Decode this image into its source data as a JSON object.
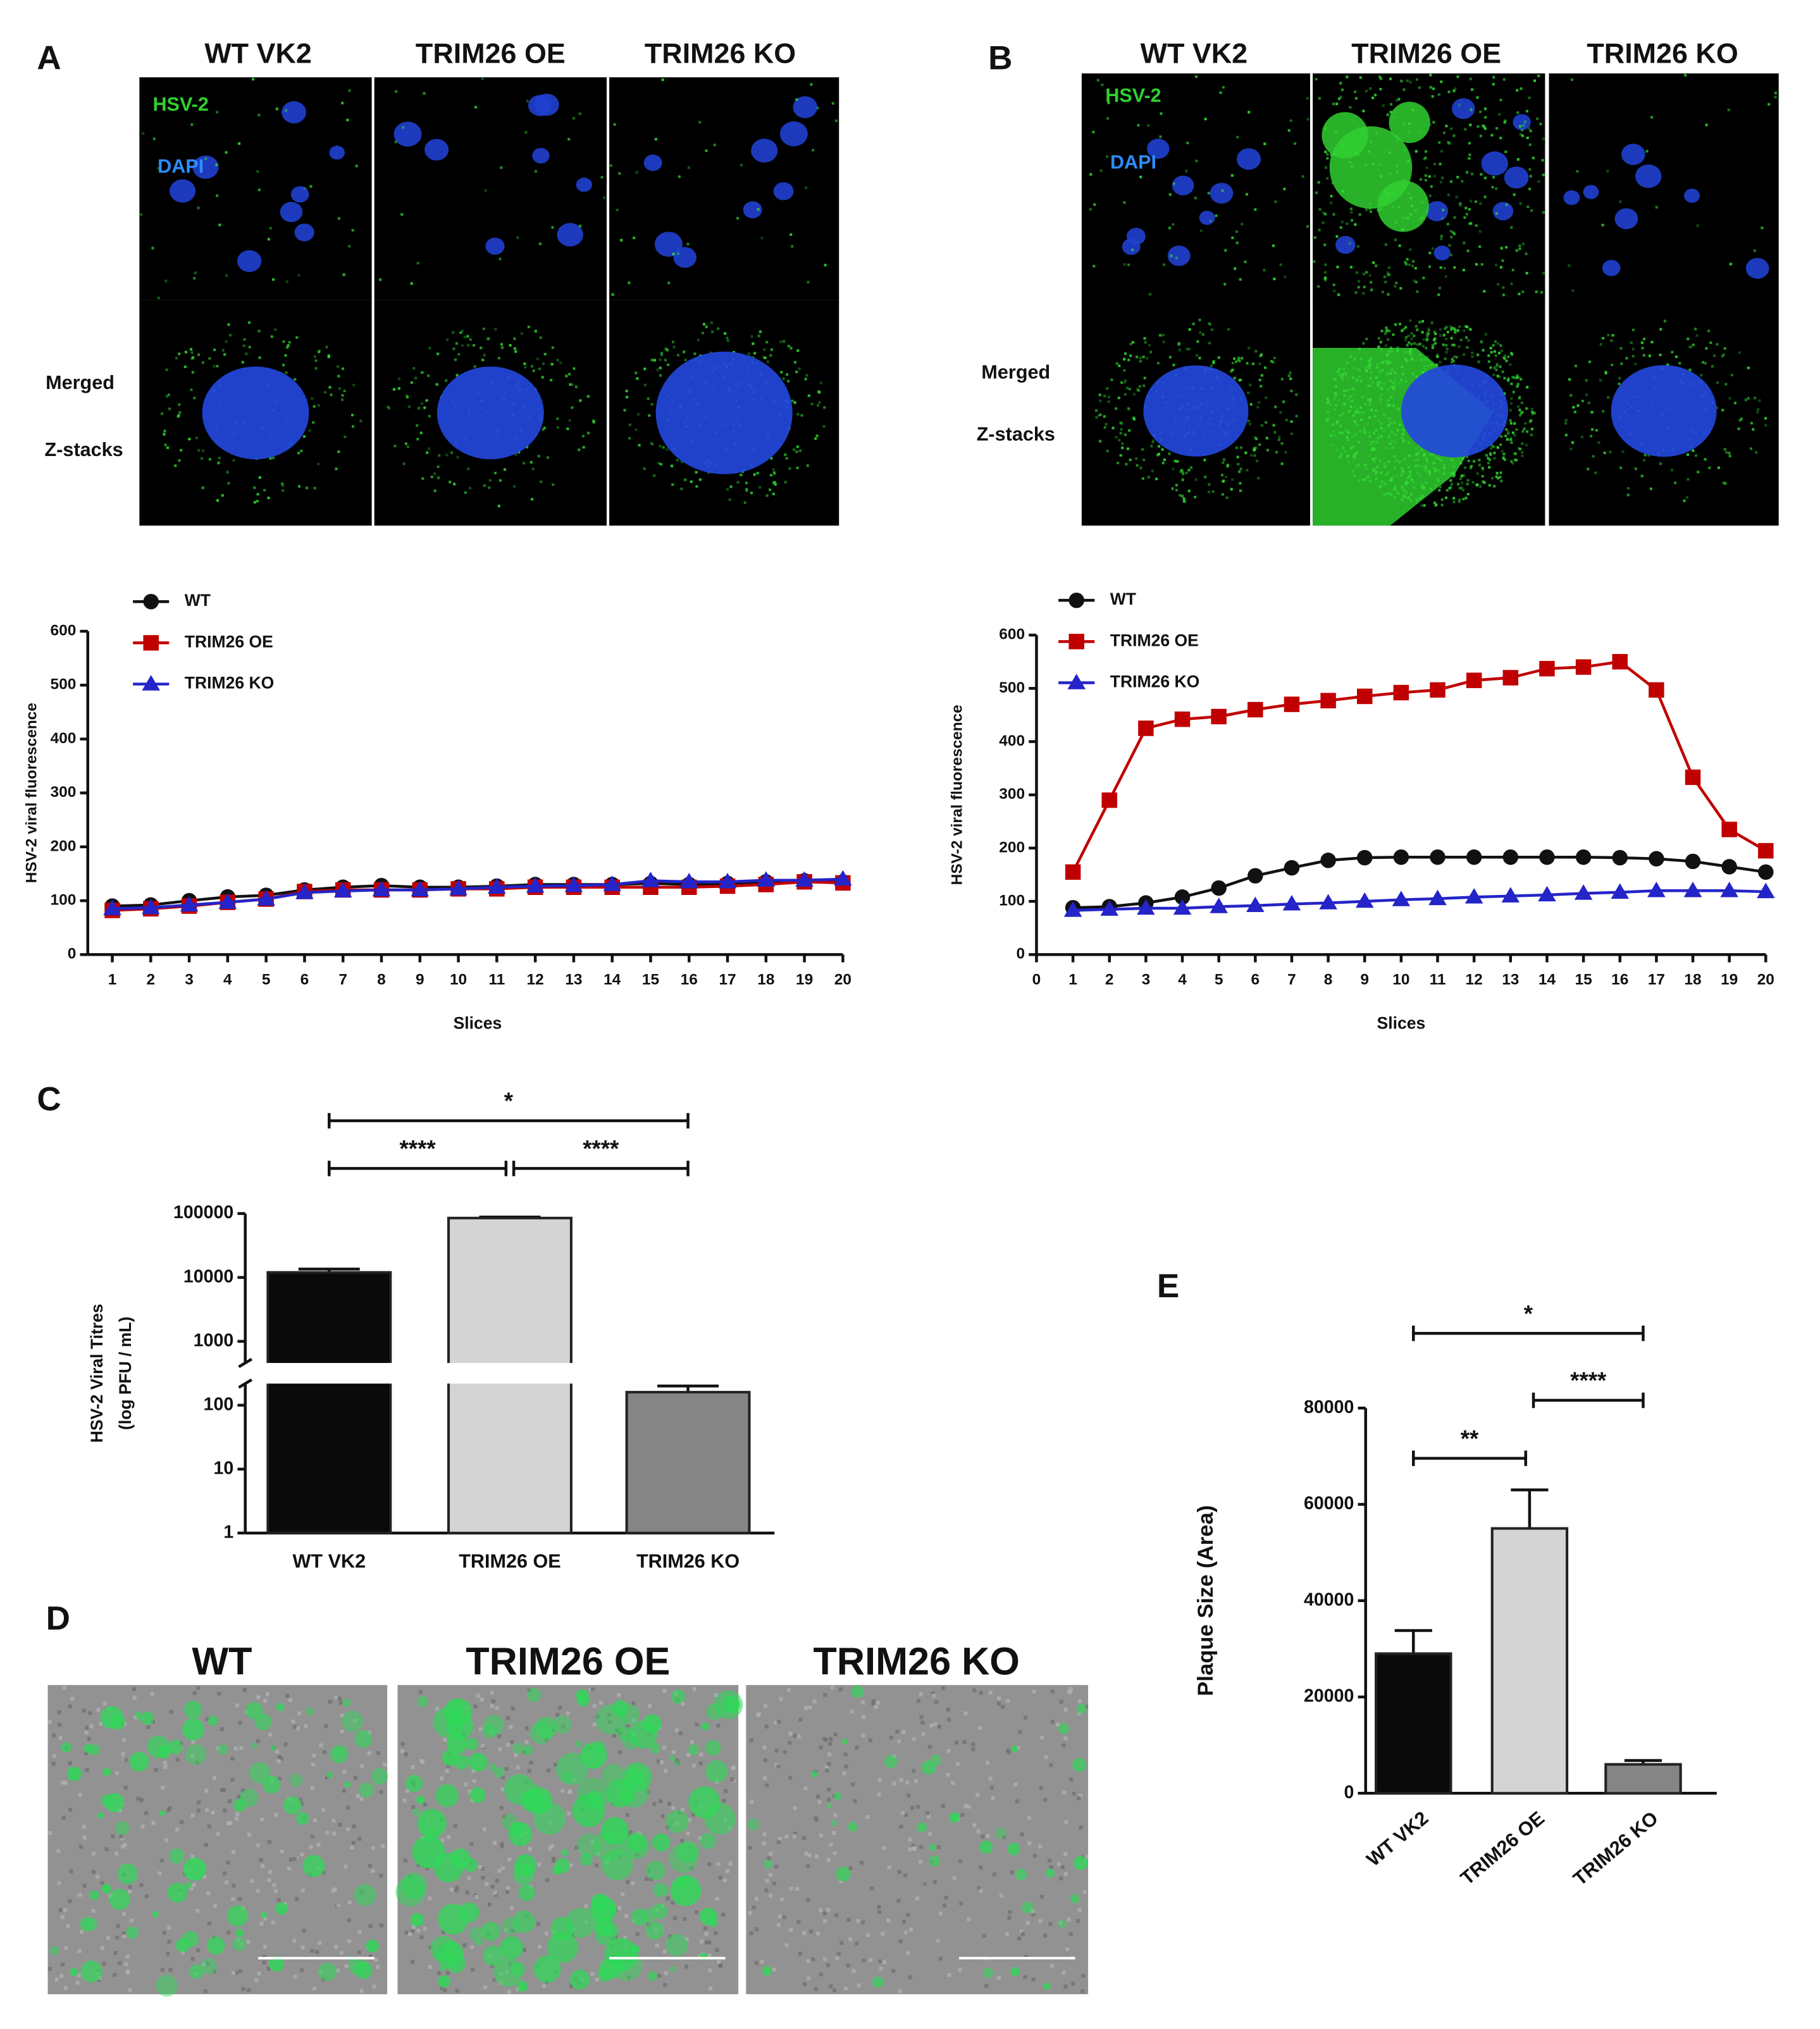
{
  "figure": {
    "panel_labels": [
      "A",
      "B",
      "C",
      "D",
      "E"
    ],
    "microscopy": [
      {
        "columns": [
          "WT VK2",
          "TRIM26 OE",
          "TRIM26 KO"
        ],
        "channel_labels": [
          "HSV-2",
          "DAPI"
        ],
        "row_labels": [
          "Merged",
          "Z-stacks"
        ]
      },
      {
        "columns": [
          "WT VK2",
          "TRIM26 OE",
          "TRIM26 KO"
        ],
        "channel_labels": [
          "HSV-2",
          "DAPI"
        ],
        "row_labels": [
          "Merged",
          "Z-stacks"
        ]
      }
    ],
    "plaque_images": {
      "columns": [
        "WT",
        "TRIM26 OE",
        "TRIM26 KO"
      ]
    }
  },
  "chart_data": [
    {
      "type": "line",
      "xlabel": "Slices",
      "ylabel": "HSV-2 viral fluorescence",
      "x": [
        1,
        2,
        3,
        4,
        5,
        6,
        7,
        8,
        9,
        10,
        11,
        12,
        13,
        14,
        15,
        16,
        17,
        18,
        19,
        20
      ],
      "xlim": [
        1,
        20
      ],
      "xticks": [
        1,
        2,
        3,
        4,
        5,
        6,
        7,
        8,
        9,
        10,
        11,
        12,
        13,
        14,
        15,
        16,
        17,
        18,
        19,
        20
      ],
      "ylim": [
        0,
        600
      ],
      "yticks": [
        0,
        100,
        200,
        300,
        400,
        500,
        600
      ],
      "series": [
        {
          "name": "WT",
          "color": "#111111",
          "marker": "circle",
          "values": [
            90,
            92,
            100,
            107,
            110,
            120,
            125,
            128,
            125,
            125,
            127,
            130,
            130,
            130,
            132,
            130,
            132,
            135,
            137,
            135
          ]
        },
        {
          "name": "TRIM26 OE",
          "color": "#c00000",
          "marker": "square",
          "values": [
            82,
            85,
            90,
            97,
            103,
            117,
            120,
            120,
            120,
            122,
            122,
            125,
            125,
            125,
            125,
            125,
            127,
            130,
            135,
            133
          ]
        },
        {
          "name": "TRIM26 KO",
          "color": "#2424c8",
          "marker": "triangle",
          "values": [
            85,
            87,
            92,
            97,
            103,
            115,
            118,
            120,
            120,
            122,
            125,
            127,
            128,
            130,
            137,
            135,
            135,
            138,
            138,
            140
          ]
        }
      ]
    },
    {
      "type": "line",
      "xlabel": "Slices",
      "ylabel": "HSV-2 viral fluorescence",
      "x": [
        1,
        2,
        3,
        4,
        5,
        6,
        7,
        8,
        9,
        10,
        11,
        12,
        13,
        14,
        15,
        16,
        17,
        18,
        19,
        20
      ],
      "xlim": [
        0,
        20
      ],
      "xticks": [
        0,
        1,
        2,
        3,
        4,
        5,
        6,
        7,
        8,
        9,
        10,
        11,
        12,
        13,
        14,
        15,
        16,
        17,
        18,
        19,
        20
      ],
      "ylim": [
        0,
        600
      ],
      "yticks": [
        0,
        100,
        200,
        300,
        400,
        500,
        600
      ],
      "series": [
        {
          "name": "WT",
          "color": "#111111",
          "marker": "circle",
          "values": [
            88,
            90,
            97,
            108,
            125,
            148,
            163,
            177,
            182,
            183,
            183,
            183,
            183,
            183,
            183,
            182,
            180,
            175,
            165,
            155
          ]
        },
        {
          "name": "TRIM26 OE",
          "color": "#c00000",
          "marker": "square",
          "values": [
            155,
            290,
            425,
            442,
            447,
            460,
            470,
            477,
            485,
            492,
            497,
            515,
            520,
            537,
            540,
            550,
            497,
            333,
            235,
            195
          ]
        },
        {
          "name": "TRIM26 KO",
          "color": "#2424c8",
          "marker": "triangle",
          "values": [
            83,
            85,
            87,
            87,
            90,
            92,
            95,
            97,
            100,
            103,
            105,
            108,
            110,
            112,
            115,
            117,
            120,
            120,
            120,
            118
          ]
        }
      ]
    },
    {
      "type": "bar",
      "ylabel": [
        "HSV-2 Viral Titres",
        "(log PFU / mL)"
      ],
      "log_scale": true,
      "categories": [
        "WT VK2",
        "TRIM26 OE",
        "TRIM26 KO"
      ],
      "values": [
        12000,
        85000,
        160
      ],
      "errors": [
        1500,
        3000,
        40
      ],
      "colors": [
        "#0a0a0a",
        "#d4d4d4",
        "#858585"
      ],
      "ylim": [
        1,
        100000
      ],
      "yticks": [
        1,
        10,
        100,
        1000,
        10000,
        100000
      ],
      "annotations": [
        "*",
        "****",
        "****"
      ]
    },
    {
      "type": "bar",
      "ylabel": "Plaque Size (Area)",
      "log_scale": false,
      "categories": [
        "WT VK2",
        "TRIM26 OE",
        "TRIM26 KO"
      ],
      "values": [
        29000,
        55000,
        6000
      ],
      "errors": [
        4800,
        8000,
        800
      ],
      "colors": [
        "#0a0a0a",
        "#d4d4d4",
        "#858585"
      ],
      "ylim": [
        0,
        80000
      ],
      "yticks": [
        0,
        20000,
        40000,
        60000,
        80000
      ],
      "annotations": [
        "*",
        "**",
        "****"
      ]
    }
  ]
}
